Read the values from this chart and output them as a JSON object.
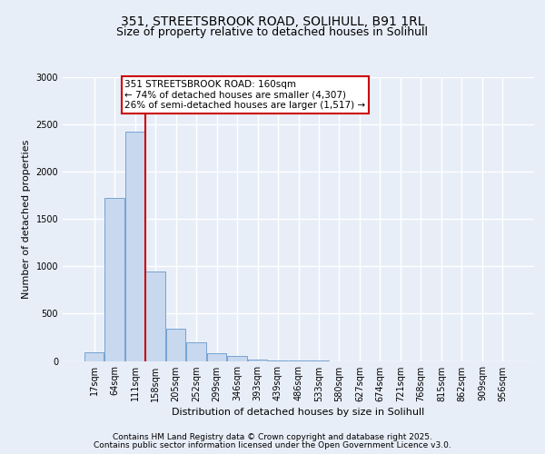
{
  "title_line1": "351, STREETSBROOK ROAD, SOLIHULL, B91 1RL",
  "title_line2": "Size of property relative to detached houses in Solihull",
  "xlabel": "Distribution of detached houses by size in Solihull",
  "ylabel": "Number of detached properties",
  "categories": [
    "17sqm",
    "64sqm",
    "111sqm",
    "158sqm",
    "205sqm",
    "252sqm",
    "299sqm",
    "346sqm",
    "393sqm",
    "439sqm",
    "486sqm",
    "533sqm",
    "580sqm",
    "627sqm",
    "674sqm",
    "721sqm",
    "768sqm",
    "815sqm",
    "862sqm",
    "909sqm",
    "956sqm"
  ],
  "values": [
    90,
    1720,
    2420,
    950,
    340,
    200,
    80,
    50,
    15,
    5,
    3,
    1,
    0,
    0,
    0,
    0,
    0,
    0,
    0,
    0,
    0
  ],
  "bar_color": "#c8d8ee",
  "bar_edge_color": "#6699cc",
  "highlight_bar_index": 3,
  "highlight_line_color": "#cc0000",
  "annotation_text": "351 STREETSBROOK ROAD: 160sqm\n← 74% of detached houses are smaller (4,307)\n26% of semi-detached houses are larger (1,517) →",
  "annotation_box_color": "#ffffff",
  "annotation_box_edge_color": "#cc0000",
  "ylim": [
    0,
    3000
  ],
  "yticks": [
    0,
    500,
    1000,
    1500,
    2000,
    2500,
    3000
  ],
  "footer_line1": "Contains HM Land Registry data © Crown copyright and database right 2025.",
  "footer_line2": "Contains public sector information licensed under the Open Government Licence v3.0.",
  "background_color": "#e8eef8",
  "plot_background_color": "#e8eef8",
  "grid_color": "#ffffff",
  "title_fontsize": 10,
  "subtitle_fontsize": 9,
  "axis_label_fontsize": 8,
  "tick_fontsize": 7,
  "annotation_fontsize": 7.5,
  "footer_fontsize": 6.5
}
